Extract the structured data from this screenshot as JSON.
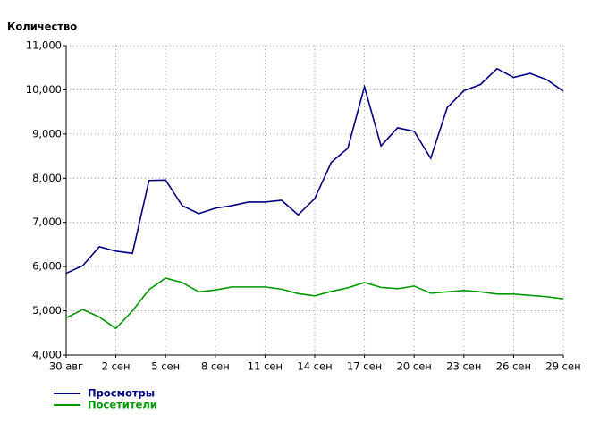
{
  "chart_data": {
    "type": "line",
    "y_label": "Количество",
    "categories": [
      "30 авг",
      null,
      null,
      "2 сен",
      null,
      null,
      "5 сен",
      null,
      null,
      "8 сен",
      null,
      null,
      "11 сен",
      null,
      null,
      "14 сен",
      null,
      null,
      "17 сен",
      null,
      null,
      "20 сен",
      null,
      null,
      "23 сен",
      null,
      null,
      "26 сен",
      null,
      null,
      "29 сен"
    ],
    "series": [
      {
        "name": "Просмотры",
        "color": "#000080",
        "values": [
          5850,
          6020,
          6450,
          6350,
          6300,
          7950,
          7960,
          7380,
          7200,
          7320,
          7380,
          7460,
          7460,
          7500,
          7170,
          7540,
          8360,
          8680,
          10070,
          8730,
          9140,
          9060,
          8450,
          9600,
          9980,
          10120,
          10480,
          10280,
          10370,
          10230,
          9970
        ]
      },
      {
        "name": "Посетители",
        "color": "#009900",
        "values": [
          4840,
          5030,
          4860,
          4600,
          5000,
          5480,
          5740,
          5640,
          5430,
          5470,
          5540,
          5540,
          5540,
          5490,
          5390,
          5340,
          5440,
          5520,
          5640,
          5530,
          5500,
          5560,
          5400,
          5430,
          5460,
          5430,
          5380,
          5380,
          5350,
          5320,
          5270
        ]
      }
    ],
    "ylim": [
      4000,
      11000
    ],
    "yticks": [
      {
        "value": 4000,
        "label": "4,000"
      },
      {
        "value": 5000,
        "label": "5,000"
      },
      {
        "value": 6000,
        "label": "6,000"
      },
      {
        "value": 7000,
        "label": "7,000"
      },
      {
        "value": 8000,
        "label": "8,000"
      },
      {
        "value": 9000,
        "label": "9,000"
      },
      {
        "value": 10000,
        "label": "10,000"
      },
      {
        "value": 11000,
        "label": "11,000"
      }
    ],
    "grid": true
  }
}
